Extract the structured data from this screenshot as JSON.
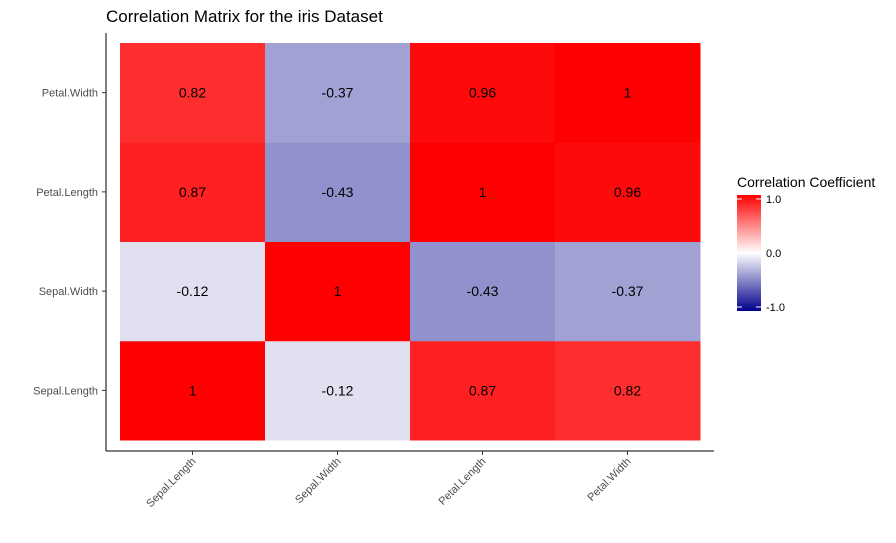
{
  "chart_data": {
    "type": "heatmap",
    "title": "Correlation Matrix for the iris Dataset",
    "xlabel": "",
    "ylabel": "",
    "x_categories": [
      "Sepal.Length",
      "Sepal.Width",
      "Petal.Length",
      "Petal.Width"
    ],
    "y_categories": [
      "Sepal.Length",
      "Sepal.Width",
      "Petal.Length",
      "Petal.Width"
    ],
    "values": [
      [
        1,
        -0.12,
        0.87,
        0.82
      ],
      [
        -0.12,
        1,
        -0.43,
        -0.37
      ],
      [
        0.87,
        -0.43,
        1,
        0.96
      ],
      [
        0.82,
        -0.37,
        0.96,
        1
      ]
    ],
    "cell_labels": [
      [
        "1",
        "-0.12",
        "0.87",
        "0.82"
      ],
      [
        "-0.12",
        "1",
        "-0.43",
        "-0.37"
      ],
      [
        "0.87",
        "-0.43",
        "1",
        "0.96"
      ],
      [
        "0.82",
        "-0.37",
        "0.96",
        "1"
      ]
    ],
    "color_scale": {
      "low": "#00008b",
      "mid": "#ffffff",
      "high": "#ff0000",
      "limits": [
        -1,
        1
      ]
    },
    "legend": {
      "title": "Correlation Coefficient",
      "ticks": [
        1.0,
        0.0,
        -1.0
      ],
      "tick_labels": [
        "1.0",
        "0.0",
        "-1.0"
      ],
      "position": "right"
    },
    "grid": false
  }
}
